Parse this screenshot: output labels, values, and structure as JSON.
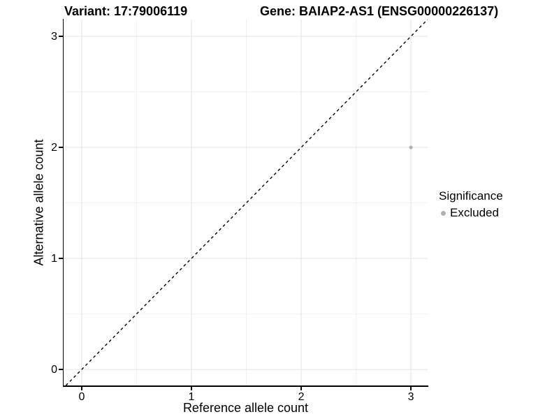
{
  "chart_data": {
    "type": "scatter",
    "titles": {
      "left": "Variant: 17:79006119",
      "right": "Gene: BAIAP2-AS1 (ENSG00000226137)"
    },
    "xlabel": "Reference allele count",
    "ylabel": "Alternative allele count",
    "x_ticks": [
      0,
      1,
      2,
      3
    ],
    "y_ticks": [
      0,
      1,
      2,
      3
    ],
    "x_minor_ticks": [
      0.5,
      1.5,
      2.5
    ],
    "y_minor_ticks": [
      0.5,
      1.5,
      2.5
    ],
    "xlim": [
      -0.165,
      3.152
    ],
    "ylim": [
      -0.144,
      3.151
    ],
    "grid": true,
    "identity_line": {
      "slope": 1,
      "intercept": 0,
      "style": "dashed",
      "color": "#000000"
    },
    "points": [
      {
        "x": 3,
        "y": 2,
        "significance": "Excluded",
        "color": "#b1b1b1",
        "radius": 2.6
      }
    ],
    "legend": {
      "title": "Significance",
      "position": "right",
      "entries": [
        {
          "label": "Excluded",
          "color": "#b1b1b1"
        }
      ]
    },
    "colors": {
      "background": "#ffffff",
      "grid_major": "#e3e3e3",
      "grid_minor": "#f1f1f1",
      "axis": "#000000",
      "text": "#000000"
    }
  }
}
